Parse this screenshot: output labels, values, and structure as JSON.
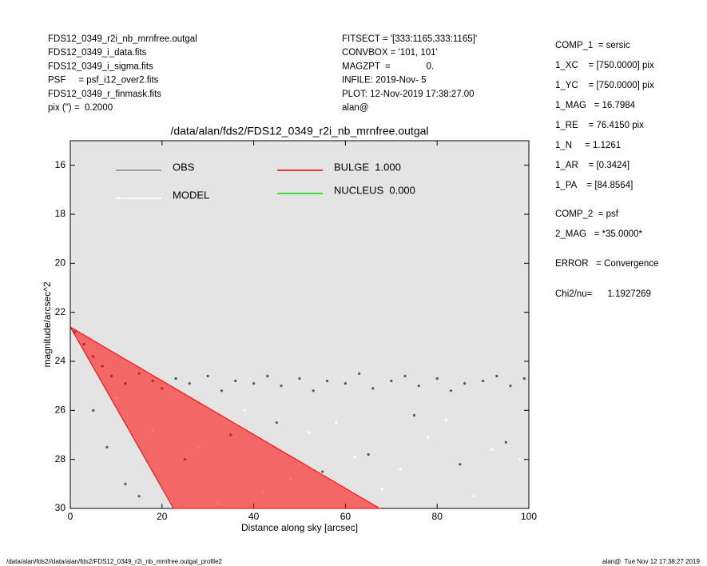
{
  "header_left": [
    "FDS12_0349_r2i_nb_mrnfree.outgal",
    "FDS12_0349_i_data.fits",
    "FDS12_0349_i_sigma.fits",
    "PSF     = psf_i12_over2.fits",
    "FDS12_0349_r_finmask.fits",
    "pix (\") =  0.2000"
  ],
  "header_middle": [
    "FITSECT = '[333:1165,333:1165]'",
    "CONVBOX = '101, 101'",
    "MAGZPT  =              0.",
    "INFILE: 2019-Nov- 5",
    "PLOT: 12-Nov-2019 17:38:27.00",
    "alan@"
  ],
  "header_right": [
    "COMP_1  = sersic",
    "1_XC    = [750.0000] pix",
    "1_YC    = [750.0000] pix",
    "1_MAG   = 16.7984",
    "1_RE    = 76.4150 pix",
    "1_N     = 1.1261",
    "1_AR    = [0.3424]",
    "1_PA    = [84.8564]",
    "COMP_2  = psf",
    "2_MAG   = *35.0000*",
    "ERROR   = Convergence",
    "Chi2/nu=      1.1927269"
  ],
  "footer_left": "/data/alan/fds2//data/alan/fds2/FDS12_0349_r2i_nb_mrnfree.outgal_profile2",
  "footer_right": "alan@  Tue Nov 12 17:38:27 2019",
  "chart_data": {
    "type": "scatter",
    "title": "/data/alan/fds2/FDS12_0349_r2i_nb_mrnfree.outgal",
    "x_label": "Distance along sky [arcsec]",
    "y_label": "magnitude/arcsec^2",
    "xlim": [
      0,
      100
    ],
    "xticks": [
      0,
      20,
      40,
      60,
      80,
      100
    ],
    "ylim": [
      30,
      15
    ],
    "yticks": [
      16,
      18,
      20,
      22,
      24,
      26,
      28,
      30
    ],
    "series": [
      {
        "name": "OBS",
        "color": "#555555",
        "mark": "points",
        "x": [
          1,
          3,
          5,
          7,
          9,
          12,
          15,
          18,
          20,
          23,
          26,
          30,
          33,
          36,
          40,
          43,
          46,
          50,
          53,
          56,
          60,
          63,
          66,
          70,
          73,
          76,
          80,
          83,
          86,
          90,
          93,
          96,
          99,
          8,
          12,
          25,
          35,
          45,
          55,
          65,
          75,
          85,
          95,
          5,
          15
        ],
        "values": [
          22.8,
          23.3,
          23.8,
          24.2,
          24.6,
          24.9,
          24.5,
          24.8,
          25.1,
          24.7,
          24.9,
          24.6,
          25.2,
          24.8,
          24.9,
          24.6,
          25.0,
          24.7,
          25.2,
          24.8,
          24.9,
          24.5,
          25.1,
          24.8,
          24.6,
          25.0,
          24.7,
          25.2,
          24.9,
          24.8,
          24.6,
          25.0,
          24.7,
          27.5,
          29,
          28,
          27,
          26.5,
          28.5,
          27.8,
          26.2,
          28.2,
          27.3,
          26,
          29.5
        ]
      },
      {
        "name": "MODEL",
        "color": "#ffffff",
        "mark": "points",
        "x": [
          10,
          18,
          28,
          38,
          48,
          58,
          68,
          78,
          88,
          98,
          22,
          42,
          62,
          82,
          92,
          32,
          52,
          72
        ],
        "values": [
          25.5,
          26.8,
          27.5,
          26,
          28.8,
          26.5,
          29.2,
          27.1,
          29.5,
          28,
          29.7,
          29.3,
          27.9,
          26.4,
          27.6,
          29.8,
          26.9,
          28.4
        ]
      },
      {
        "name": "BULGE  1.000",
        "color": "#ff0000",
        "mark": "area",
        "x": [
          0,
          67.5,
          22.5
        ],
        "values": [
          22.6,
          30,
          30
        ]
      },
      {
        "name": "NUCLEUS  0.000",
        "color": "#00dd00",
        "mark": "points",
        "x": [],
        "values": []
      }
    ]
  }
}
